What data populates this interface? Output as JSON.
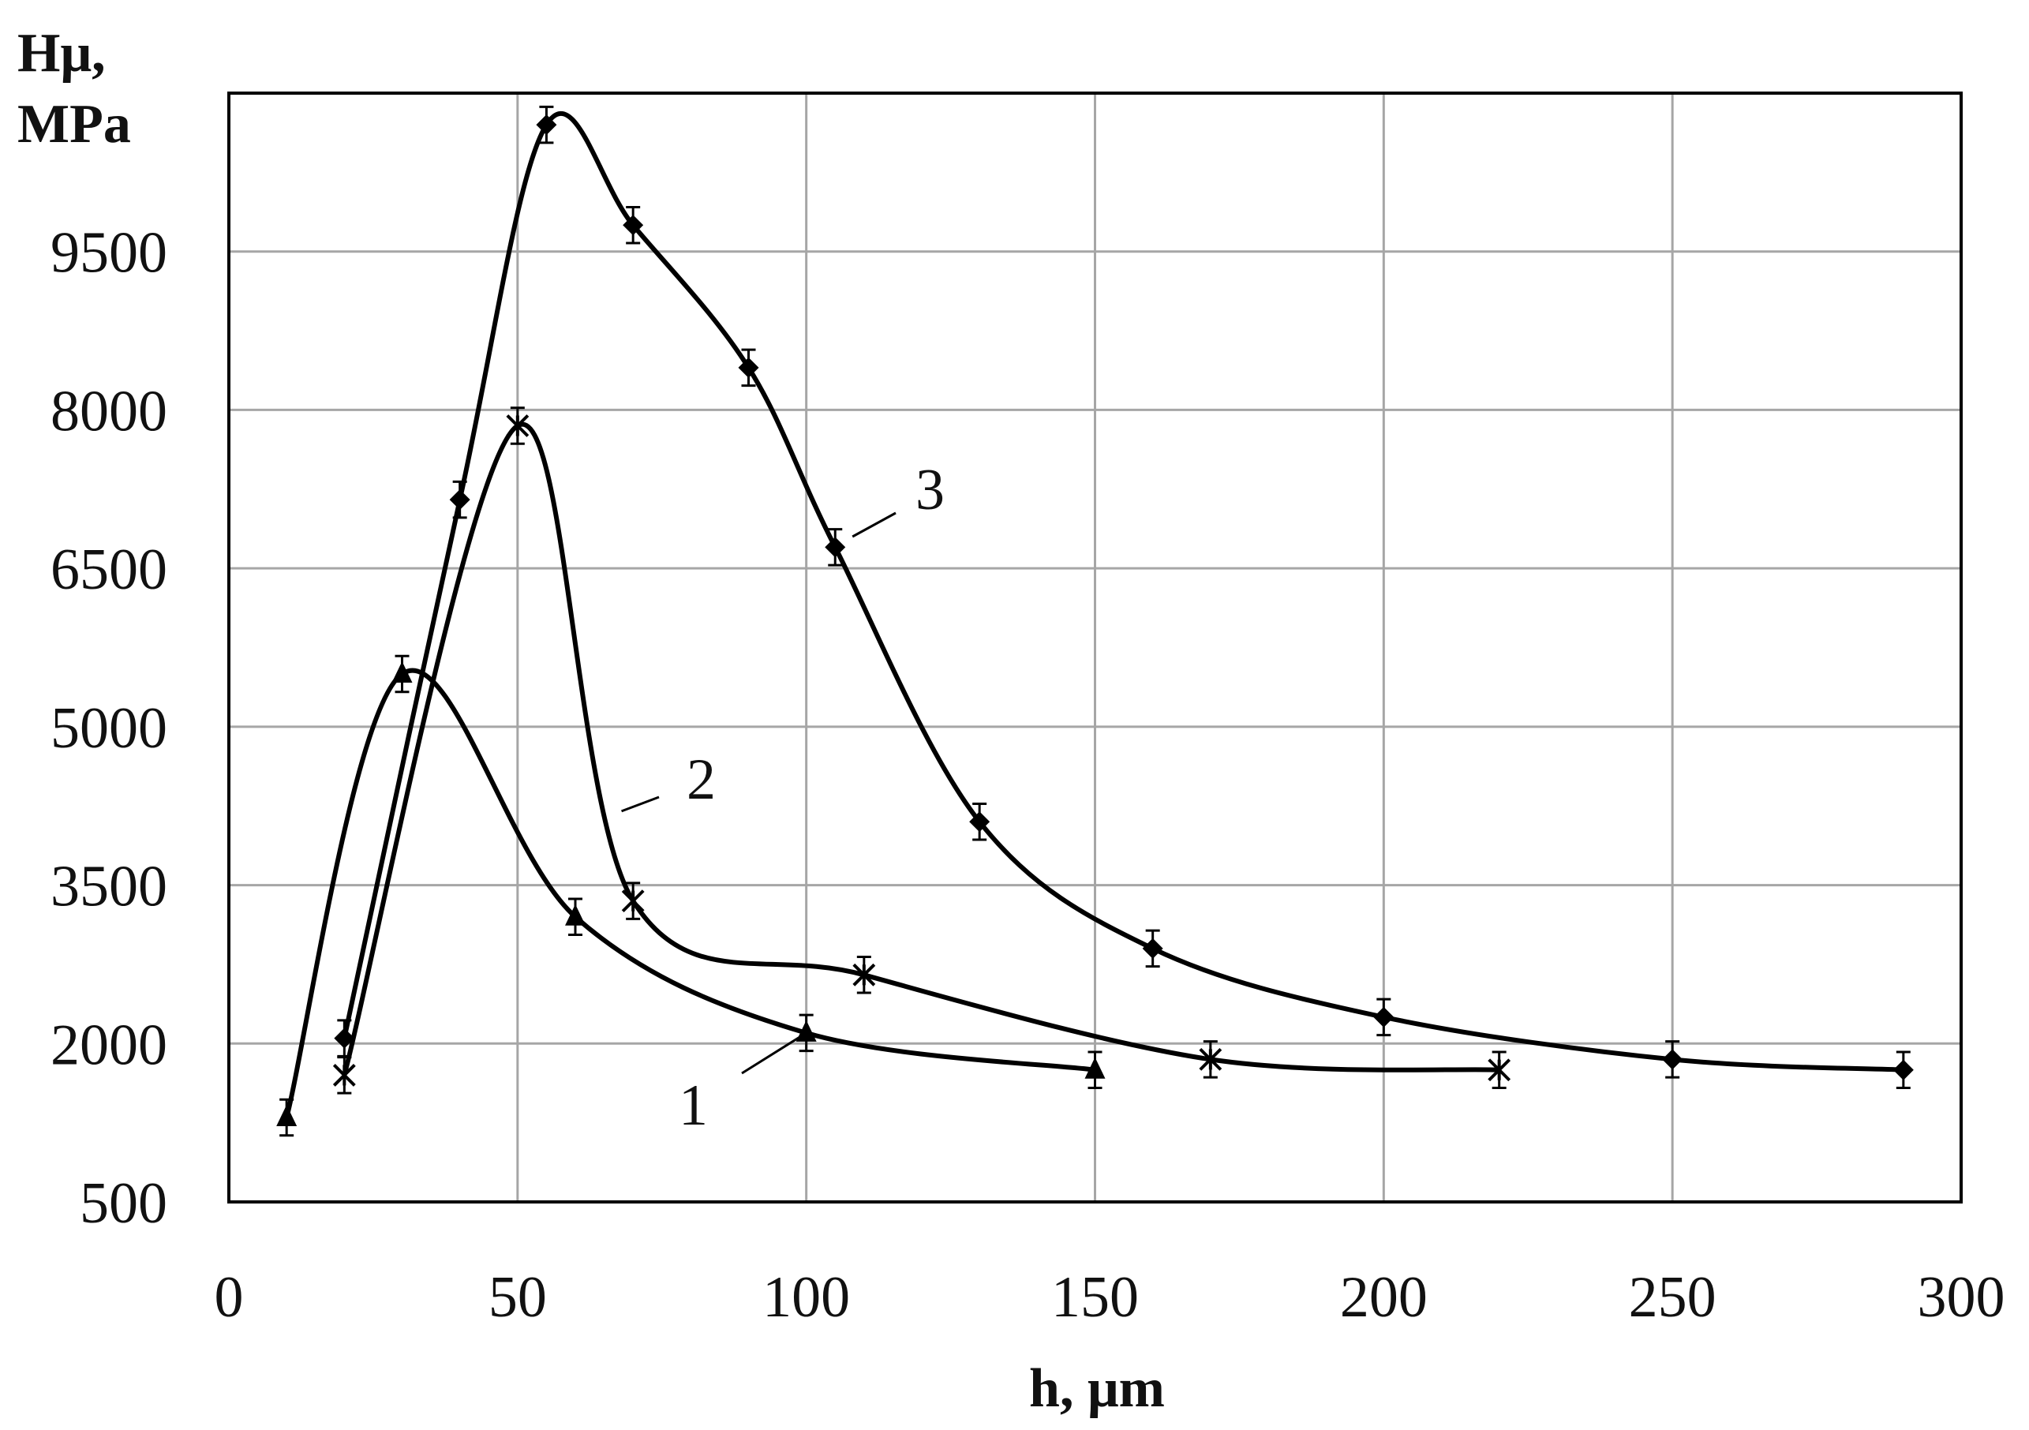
{
  "chart_data": {
    "type": "line",
    "title": "",
    "xlabel": "h, μm",
    "ylabel_lines": [
      "Hμ,",
      "MPa"
    ],
    "xlim": [
      0,
      300
    ],
    "ylim": [
      500,
      11000
    ],
    "xticks": [
      0,
      50,
      100,
      150,
      200,
      250,
      300
    ],
    "yticks": [
      500,
      2000,
      3500,
      5000,
      6500,
      8000,
      9500
    ],
    "grid": true,
    "legend": "none",
    "series": [
      {
        "name": "1",
        "marker": "triangle",
        "x": [
          10,
          30,
          60,
          100,
          150
        ],
        "y": [
          1300,
          5500,
          3200,
          2100,
          1750
        ],
        "err": [
          170,
          170,
          170,
          170,
          170
        ],
        "label_at": [
          100,
          2100
        ]
      },
      {
        "name": "2",
        "marker": "star",
        "x": [
          20,
          50,
          70,
          110,
          170,
          220
        ],
        "y": [
          1700,
          7850,
          3350,
          2650,
          1850,
          1750
        ],
        "err": [
          170,
          170,
          170,
          170,
          170,
          170
        ],
        "label_at": [
          68,
          4200
        ]
      },
      {
        "name": "3",
        "marker": "diamond",
        "x": [
          20,
          40,
          55,
          70,
          90,
          105,
          130,
          160,
          200,
          250,
          290
        ],
        "y": [
          2050,
          7150,
          10700,
          9750,
          8400,
          6700,
          4100,
          2900,
          2250,
          1850,
          1750
        ],
        "err": [
          170,
          170,
          170,
          170,
          170,
          170,
          170,
          170,
          170,
          170,
          170
        ],
        "label_at": [
          108,
          6800
        ]
      }
    ]
  }
}
